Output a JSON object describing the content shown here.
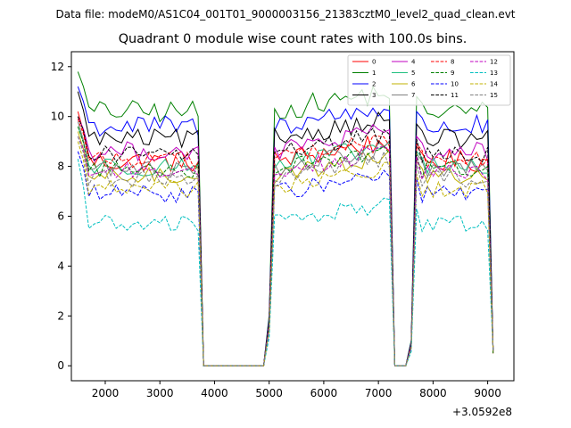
{
  "chart_data": {
    "type": "line",
    "suptitle": "Data file: modeM0/AS1C04_001T01_9000003156_21383cztM0_level2_quad_clean.evt",
    "title": "Quadrant 0 module wise count rates with 100.0s bins.",
    "xlabel": "",
    "ylabel": "",
    "x_offset_label": "+3.0592e8",
    "xlim": [
      1380,
      9480
    ],
    "ylim": [
      -0.6,
      12.6
    ],
    "x_ticks": [
      2000,
      3000,
      4000,
      5000,
      6000,
      7000,
      8000,
      9000
    ],
    "y_ticks": [
      0,
      2,
      4,
      6,
      8,
      10,
      12
    ],
    "legend_position": "top-right",
    "segments": [
      {
        "start": 1500,
        "end": 3700
      },
      {
        "start": 3800,
        "end": 4900
      },
      {
        "start": 5000,
        "end": 7200
      },
      {
        "start": 7300,
        "end": 7500
      },
      {
        "start": 7600,
        "end": 9000
      },
      {
        "start": 9100,
        "end": 9100
      }
    ],
    "transitions": {
      "3800": 0,
      "4900": 0,
      "7300": 0,
      "7500": 0
    },
    "series": [
      {
        "name": "0",
        "color": "#ff0000",
        "dash": "solid",
        "level": 8.2,
        "start": 10.2,
        "end": 0.5,
        "wobble": 0.45
      },
      {
        "name": "1",
        "color": "#008000",
        "dash": "solid",
        "level": 10.2,
        "start": 11.8,
        "end": 0.5,
        "wobble": 0.45
      },
      {
        "name": "2",
        "color": "#0000ff",
        "dash": "solid",
        "level": 9.6,
        "start": 11.2,
        "end": 0.6,
        "wobble": 0.45
      },
      {
        "name": "3",
        "color": "#000000",
        "dash": "solid",
        "level": 9.1,
        "start": 11.0,
        "end": 0.6,
        "wobble": 0.4
      },
      {
        "name": "4",
        "color": "#c000c0",
        "dash": "solid",
        "level": 8.6,
        "start": 10.0,
        "end": 0.6,
        "wobble": 0.4
      },
      {
        "name": "5",
        "color": "#20c080",
        "dash": "solid",
        "level": 8.0,
        "start": 9.6,
        "end": 0.6,
        "wobble": 0.4
      },
      {
        "name": "6",
        "color": "#c0b000",
        "dash": "solid",
        "level": 7.6,
        "start": 9.4,
        "end": 0.6,
        "wobble": 0.35
      },
      {
        "name": "7",
        "color": "#808080",
        "dash": "solid",
        "level": 7.9,
        "start": 9.8,
        "end": 0.6,
        "wobble": 0.35
      },
      {
        "name": "8",
        "color": "#ff0000",
        "dash": "dashed",
        "level": 8.3,
        "start": 9.9,
        "end": 0.6,
        "wobble": 0.35
      },
      {
        "name": "9",
        "color": "#008000",
        "dash": "dashed",
        "level": 7.9,
        "start": 9.6,
        "end": 0.6,
        "wobble": 0.35
      },
      {
        "name": "10",
        "color": "#0000ff",
        "dash": "dashed",
        "level": 6.9,
        "start": 8.6,
        "end": 0.6,
        "wobble": 0.35
      },
      {
        "name": "11",
        "color": "#000000",
        "dash": "dashed",
        "level": 8.5,
        "start": 10.0,
        "end": 0.6,
        "wobble": 0.35
      },
      {
        "name": "12",
        "color": "#c000c0",
        "dash": "dashed",
        "level": 7.8,
        "start": 9.2,
        "end": 0.6,
        "wobble": 0.35
      },
      {
        "name": "13",
        "color": "#00c0c0",
        "dash": "dashed",
        "level": 5.7,
        "start": 8.3,
        "end": 0.6,
        "wobble": 0.35
      },
      {
        "name": "14",
        "color": "#c0b000",
        "dash": "dashed",
        "level": 7.1,
        "start": 9.0,
        "end": 0.6,
        "wobble": 0.35
      },
      {
        "name": "15",
        "color": "#808080",
        "dash": "dashed",
        "level": 7.5,
        "start": 9.2,
        "end": 0.6,
        "wobble": 0.35
      }
    ]
  }
}
